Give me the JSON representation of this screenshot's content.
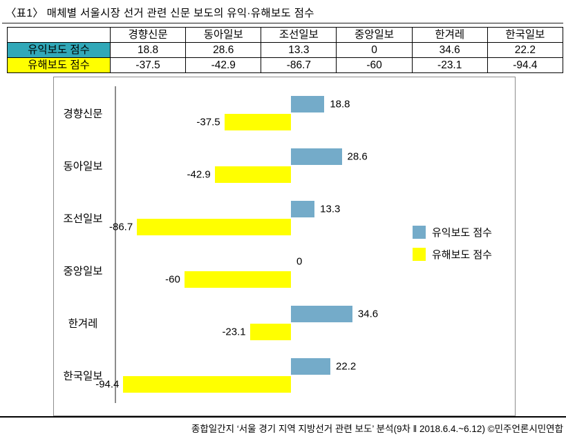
{
  "page": {
    "title": "〈표1〉 매체별 서울시장 선거 관련 신문 보도의 유익·유해보도 점수",
    "caption": "종합일간지 ‘서울 경기 지역 지방선거 관련 보도’ 분석(9차 ‖ 2018.6.4.~6.12) ©민주언론시민연합"
  },
  "colors": {
    "benefit_bar": "#74ABC9",
    "harm_bar": "#FFFF00",
    "benefit_row_bg": "#31A8B8",
    "harm_row_bg": "#FFFF00",
    "chart_border": "#8c8c8c"
  },
  "table": {
    "columns": [
      "",
      "경향신문",
      "동아일보",
      "조선일보",
      "중앙일보",
      "한겨레",
      "한국일보"
    ],
    "rows": [
      {
        "label": "유익보도 점수",
        "bg": "#31A8B8",
        "values": [
          18.8,
          28.6,
          13.3,
          0,
          34.6,
          22.2
        ]
      },
      {
        "label": "유해보도 점수",
        "bg": "#FFFF00",
        "values": [
          -37.5,
          -42.9,
          -86.7,
          -60,
          -23.1,
          -94.4
        ]
      }
    ]
  },
  "chart_data": {
    "type": "bar",
    "orientation": "horizontal",
    "title": "",
    "categories": [
      "경향신문",
      "동아일보",
      "조선일보",
      "중앙일보",
      "한겨레",
      "한국일보"
    ],
    "series": [
      {
        "name": "유익보도 점수",
        "color": "#74ABC9",
        "values": [
          18.8,
          28.6,
          13.3,
          0,
          34.6,
          22.2
        ]
      },
      {
        "name": "유해보도 점수",
        "color": "#FFFF00",
        "values": [
          -37.5,
          -42.9,
          -86.7,
          -60,
          -23.1,
          -94.4
        ]
      }
    ],
    "value_labels": true,
    "grid": false,
    "legend_position": "middle-right"
  }
}
